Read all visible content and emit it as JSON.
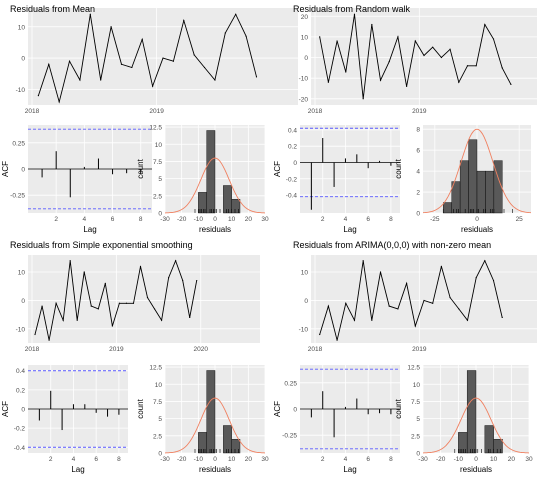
{
  "colors": {
    "panel_bg": "#ebebeb",
    "grid": "#ffffff",
    "line": "#000000",
    "band": "#5a5aff",
    "bar_fill": "#595959",
    "bar_edge": "#000000",
    "density": "#f08060",
    "text": "#4d4d4d"
  },
  "chart_data": [
    {
      "type": "line",
      "title": "Residuals from Mean",
      "xlabel": "",
      "ylabel": "",
      "x_ticks": [
        "2018",
        "2019"
      ],
      "y_ticks": [
        10,
        0,
        -10
      ],
      "xlim": [
        0,
        26
      ],
      "ylim": [
        -15,
        16
      ],
      "values": [
        -12,
        -2,
        -14,
        -1,
        -7,
        14,
        -7,
        10,
        -2,
        -3,
        6,
        -9,
        0,
        -1,
        12,
        1,
        -3,
        -7,
        8,
        14,
        7,
        -6
      ]
    },
    {
      "type": "bar",
      "subtype": "acf",
      "title": "",
      "xlabel": "Lag",
      "ylabel": "ACF",
      "x_ticks": [
        2,
        4,
        6,
        8
      ],
      "y_ticks": [
        0.25,
        0.0,
        -0.25
      ],
      "xlim": [
        0,
        8.8
      ],
      "ylim": [
        -0.42,
        0.42
      ],
      "band": 0.38,
      "lags": [
        1,
        2,
        3,
        4,
        5,
        6,
        7,
        8
      ],
      "values": [
        -0.08,
        0.17,
        -0.27,
        0.02,
        0.1,
        -0.05,
        -0.04,
        -0.05
      ]
    },
    {
      "type": "bar",
      "subtype": "histogram",
      "title": "",
      "xlabel": "residuals",
      "ylabel": "count",
      "x_ticks": [
        -30,
        -20,
        -10,
        0,
        10,
        20,
        30
      ],
      "y_ticks": [
        0.0,
        2.5,
        5.0,
        7.5,
        10.0,
        12.5
      ],
      "xlim": [
        -30,
        30
      ],
      "ylim": [
        0,
        12.8
      ],
      "bin_width": 5,
      "bin_starts": [
        -10,
        -5,
        0,
        5,
        10,
        15
      ],
      "counts": [
        3,
        12,
        0,
        4,
        2,
        0
      ],
      "density_peak": 8,
      "density_mean": 0,
      "density_sd": 8.5,
      "rug": [
        -12,
        -10,
        -9,
        -8,
        -7,
        -6,
        -3,
        -2,
        -1,
        0,
        1,
        3,
        7,
        8,
        10,
        12,
        14
      ]
    },
    {
      "type": "line",
      "title": "Residuals from Random walk",
      "xlabel": "",
      "ylabel": "",
      "x_ticks": [
        "2018",
        "2019"
      ],
      "y_ticks": [
        20,
        10,
        0,
        -10,
        -20
      ],
      "xlim": [
        0,
        26
      ],
      "ylim": [
        -23,
        24
      ],
      "values": [
        10,
        -12,
        8,
        -7,
        21,
        -20,
        16,
        -11,
        -2,
        10,
        -14,
        8,
        1,
        5,
        0,
        4,
        -12,
        -4,
        -4,
        16,
        9,
        -5,
        -13
      ]
    },
    {
      "type": "bar",
      "subtype": "acf",
      "title": "",
      "xlabel": "Lag",
      "ylabel": "ACF",
      "x_ticks": [
        2,
        4,
        6,
        8
      ],
      "y_ticks": [
        0.4,
        0.2,
        0.0,
        -0.2,
        -0.4
      ],
      "xlim": [
        0,
        8.8
      ],
      "ylim": [
        -0.62,
        0.46
      ],
      "band": 0.42,
      "lags": [
        1,
        2,
        3,
        4,
        5,
        6,
        7,
        8
      ],
      "values": [
        -0.58,
        0.3,
        -0.3,
        0.05,
        0.1,
        -0.07,
        0.02,
        -0.04
      ]
    },
    {
      "type": "bar",
      "subtype": "histogram",
      "title": "",
      "xlabel": "residuals",
      "ylabel": "count",
      "x_ticks": [
        -25,
        0,
        25
      ],
      "y_ticks": [
        0,
        2,
        4,
        6,
        8
      ],
      "xlim": [
        -32,
        32
      ],
      "ylim": [
        0,
        8.4
      ],
      "bin_width": 5,
      "bin_starts": [
        -20,
        -15,
        -10,
        -5,
        0,
        5,
        10
      ],
      "counts": [
        1,
        3,
        5,
        7,
        4,
        4,
        5
      ],
      "density_peak": 8,
      "density_mean": 0,
      "density_sd": 9.5,
      "rug": [
        -20,
        -14,
        -12,
        -11,
        -7,
        -4,
        -3,
        -2,
        0,
        1,
        4,
        5,
        8,
        9,
        10,
        16,
        21
      ]
    },
    {
      "type": "line",
      "title": "Residuals from Simple exponential smoothing",
      "xlabel": "",
      "ylabel": "",
      "x_ticks": [
        "2018",
        "2019",
        "2020"
      ],
      "y_ticks": [
        10,
        0,
        -10
      ],
      "xlim": [
        0,
        33
      ],
      "ylim": [
        -15,
        16
      ],
      "values": [
        -12,
        -2,
        -14,
        -1,
        -7,
        14,
        -7,
        10,
        -2,
        -3,
        6,
        -9,
        -1,
        -1,
        -1,
        12,
        1,
        -3,
        -7,
        8,
        14,
        7,
        -6,
        7
      ]
    },
    {
      "type": "bar",
      "subtype": "acf",
      "title": "",
      "xlabel": "Lag",
      "ylabel": "ACF",
      "x_ticks": [
        2,
        4,
        6,
        8
      ],
      "y_ticks": [
        0.4,
        0.2,
        0.0,
        -0.2,
        -0.4
      ],
      "xlim": [
        0,
        8.8
      ],
      "ylim": [
        -0.46,
        0.46
      ],
      "band": 0.4,
      "lags": [
        1,
        2,
        3,
        4,
        5,
        6,
        7,
        8
      ],
      "values": [
        -0.12,
        0.19,
        -0.22,
        0.05,
        0.05,
        -0.04,
        -0.08,
        -0.06
      ]
    },
    {
      "type": "bar",
      "subtype": "histogram",
      "title": "",
      "xlabel": "residuals",
      "ylabel": "count",
      "x_ticks": [
        -30,
        -20,
        -10,
        0,
        10,
        20,
        30
      ],
      "y_ticks": [
        0.0,
        2.5,
        5.0,
        7.5,
        10.0,
        12.5
      ],
      "xlim": [
        -30,
        30
      ],
      "ylim": [
        0,
        12.8
      ],
      "bin_width": 5,
      "bin_starts": [
        -10,
        -5,
        0,
        5,
        10,
        15
      ],
      "counts": [
        3,
        12,
        0,
        4,
        2,
        0
      ],
      "density_peak": 8,
      "density_mean": 0,
      "density_sd": 8.5,
      "rug": [
        -12,
        -10,
        -9,
        -8,
        -7,
        -6,
        -3,
        -2,
        -1,
        0,
        1,
        3,
        7,
        8,
        10,
        12,
        14
      ]
    },
    {
      "type": "line",
      "title": "Residuals from ARIMA(0,0,0) with non-zero mean",
      "xlabel": "",
      "ylabel": "",
      "x_ticks": [
        "2018",
        "2019"
      ],
      "y_ticks": [
        10,
        0,
        -10
      ],
      "xlim": [
        0,
        26
      ],
      "ylim": [
        -15,
        16
      ],
      "values": [
        -12,
        -2,
        -14,
        -1,
        -7,
        14,
        -7,
        10,
        -2,
        -3,
        6,
        -9,
        0,
        -1,
        12,
        1,
        -3,
        -7,
        8,
        14,
        7,
        -6
      ]
    },
    {
      "type": "bar",
      "subtype": "acf",
      "title": "",
      "xlabel": "Lag",
      "ylabel": "ACF",
      "x_ticks": [
        2,
        4,
        6,
        8
      ],
      "y_ticks": [
        0.25,
        0.0,
        -0.25
      ],
      "xlim": [
        0,
        8.8
      ],
      "ylim": [
        -0.42,
        0.42
      ],
      "band": 0.38,
      "lags": [
        1,
        2,
        3,
        4,
        5,
        6,
        7,
        8
      ],
      "values": [
        -0.08,
        0.17,
        -0.27,
        0.02,
        0.1,
        -0.05,
        -0.04,
        -0.05
      ]
    },
    {
      "type": "bar",
      "subtype": "histogram",
      "title": "",
      "xlabel": "residuals",
      "ylabel": "count",
      "x_ticks": [
        -30,
        -20,
        -10,
        0,
        10,
        20,
        30
      ],
      "y_ticks": [
        0.0,
        2.5,
        5.0,
        7.5,
        10.0,
        12.5
      ],
      "xlim": [
        -30,
        30
      ],
      "ylim": [
        0,
        12.8
      ],
      "bin_width": 5,
      "bin_starts": [
        -10,
        -5,
        0,
        5,
        10,
        15
      ],
      "counts": [
        3,
        12,
        0,
        4,
        2,
        0
      ],
      "density_peak": 8,
      "density_mean": 0,
      "density_sd": 8.5,
      "rug": [
        -12,
        -10,
        -9,
        -8,
        -7,
        -6,
        -3,
        -2,
        -1,
        0,
        1,
        3,
        7,
        8,
        10,
        12,
        14
      ]
    }
  ]
}
